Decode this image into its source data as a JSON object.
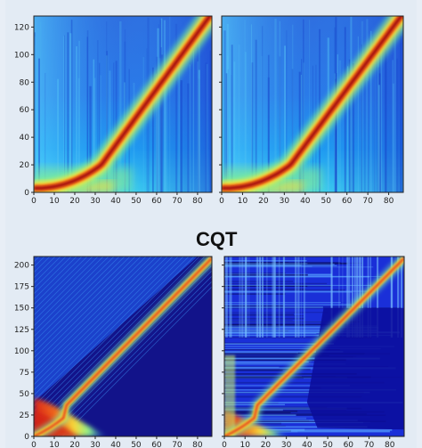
{
  "titles": {
    "top": "",
    "bottom": "CQT"
  },
  "chart_data": [
    {
      "type": "heatmap",
      "title": "",
      "subplots": 2,
      "xlim": [
        0,
        87
      ],
      "ylim": [
        0,
        128
      ],
      "xticks": [
        0,
        10,
        20,
        30,
        40,
        50,
        60,
        70,
        80
      ],
      "yticks": [
        0,
        20,
        40,
        60,
        80,
        100,
        120
      ],
      "colormap": "jet",
      "pattern": "peak ridge running from lower-left to upper-right (curved near the bottom, straight above y≈20)"
    },
    {
      "type": "heatmap",
      "title": "CQT",
      "subplots": 2,
      "xlim": [
        0,
        87
      ],
      "ylim": [
        0,
        210
      ],
      "xticks": [
        0,
        10,
        20,
        30,
        40,
        50,
        60,
        70,
        80
      ],
      "yticks": [
        0,
        25,
        50,
        75,
        100,
        125,
        150,
        175,
        200
      ],
      "colormap": "jet",
      "pattern": "diagonal ridge from origin to top-right; left panel with broad warm lobe at low x, right panel noisy with blocky dark-blue regions"
    }
  ]
}
